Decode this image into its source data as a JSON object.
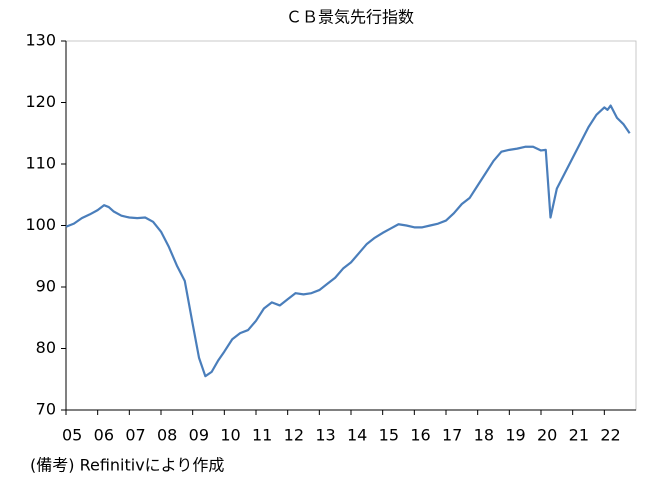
{
  "chart_data": {
    "type": "line",
    "title": "ＣＢ景気先行指数",
    "note": "(備考) Refinitivにより作成",
    "x": [
      2005.0,
      2005.25,
      2005.5,
      2005.75,
      2006.0,
      2006.2,
      2006.35,
      2006.5,
      2006.75,
      2007.0,
      2007.25,
      2007.5,
      2007.75,
      2008.0,
      2008.25,
      2008.5,
      2008.75,
      2009.0,
      2009.2,
      2009.4,
      2009.6,
      2009.8,
      2010.0,
      2010.25,
      2010.5,
      2010.75,
      2011.0,
      2011.25,
      2011.5,
      2011.75,
      2012.0,
      2012.25,
      2012.5,
      2012.75,
      2013.0,
      2013.25,
      2013.5,
      2013.75,
      2014.0,
      2014.25,
      2014.5,
      2014.75,
      2015.0,
      2015.25,
      2015.5,
      2015.75,
      2016.0,
      2016.25,
      2016.5,
      2016.75,
      2017.0,
      2017.25,
      2017.5,
      2017.75,
      2018.0,
      2018.25,
      2018.5,
      2018.75,
      2019.0,
      2019.25,
      2019.5,
      2019.75,
      2020.0,
      2020.15,
      2020.3,
      2020.5,
      2020.75,
      2021.0,
      2021.25,
      2021.5,
      2021.75,
      2022.0,
      2022.1,
      2022.2,
      2022.4,
      2022.6,
      2022.8
    ],
    "series": [
      {
        "name": "CB",
        "color": "#4a7ebb",
        "values": [
          99.8,
          100.3,
          101.2,
          101.8,
          102.5,
          103.3,
          103.0,
          102.3,
          101.6,
          101.3,
          101.2,
          101.3,
          100.6,
          99.0,
          96.5,
          93.5,
          91.0,
          84.0,
          78.5,
          75.5,
          76.2,
          78.0,
          79.5,
          81.5,
          82.5,
          83.0,
          84.5,
          86.5,
          87.5,
          87.0,
          88.0,
          89.0,
          88.8,
          89.0,
          89.5,
          90.5,
          91.5,
          93.0,
          94.0,
          95.5,
          97.0,
          98.0,
          98.8,
          99.5,
          100.2,
          100.0,
          99.7,
          99.7,
          100.0,
          100.3,
          100.8,
          102.0,
          103.5,
          104.5,
          106.5,
          108.5,
          110.5,
          112.0,
          112.3,
          112.5,
          112.8,
          112.8,
          112.2,
          112.3,
          101.3,
          106.0,
          108.5,
          111.0,
          113.5,
          116.0,
          118.0,
          119.2,
          118.8,
          119.5,
          117.5,
          116.5,
          115.0
        ]
      }
    ],
    "xlim": [
      2005,
      2023
    ],
    "xticks": [
      {
        "value": 2005,
        "label": "05"
      },
      {
        "value": 2006,
        "label": "06"
      },
      {
        "value": 2007,
        "label": "07"
      },
      {
        "value": 2008,
        "label": "08"
      },
      {
        "value": 2009,
        "label": "09"
      },
      {
        "value": 2010,
        "label": "10"
      },
      {
        "value": 2011,
        "label": "11"
      },
      {
        "value": 2012,
        "label": "12"
      },
      {
        "value": 2013,
        "label": "13"
      },
      {
        "value": 2014,
        "label": "14"
      },
      {
        "value": 2015,
        "label": "15"
      },
      {
        "value": 2016,
        "label": "16"
      },
      {
        "value": 2017,
        "label": "17"
      },
      {
        "value": 2018,
        "label": "18"
      },
      {
        "value": 2019,
        "label": "19"
      },
      {
        "value": 2020,
        "label": "20"
      },
      {
        "value": 2021,
        "label": "21"
      },
      {
        "value": 2022,
        "label": "22"
      }
    ],
    "ylim": [
      70,
      130
    ],
    "yticks": [
      70,
      80,
      90,
      100,
      110,
      120,
      130
    ],
    "grid": false
  }
}
